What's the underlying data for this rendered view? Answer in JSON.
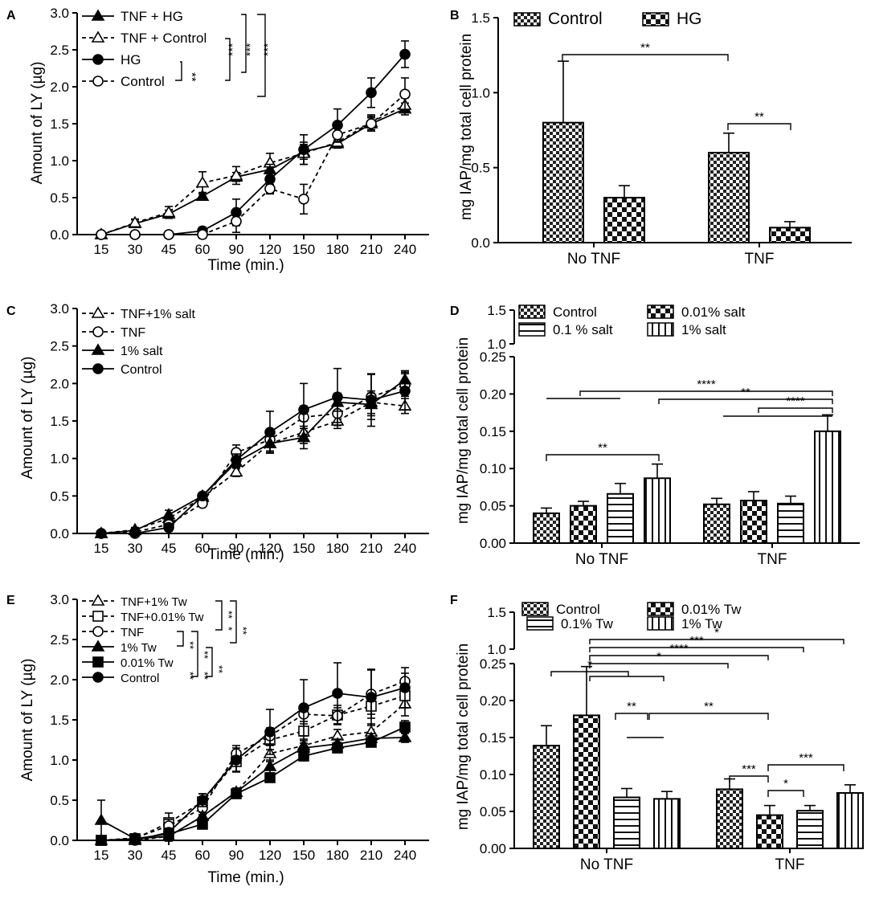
{
  "chart_data": [
    {
      "panel": "A",
      "type": "line",
      "x": [
        15,
        30,
        45,
        60,
        90,
        120,
        150,
        180,
        210,
        240
      ],
      "xlabel": "Time (min.)",
      "ylabel": "Amount of LY (µg)",
      "ylim": [
        0,
        3.0
      ],
      "yticks": [
        "0.0",
        "0.5",
        "1.0",
        "1.5",
        "2.0",
        "2.5",
        "3.0"
      ],
      "series": [
        {
          "name": "TNF + HG",
          "marker": "triangle-filled",
          "dash": false,
          "values": [
            0,
            0.15,
            0.28,
            0.52,
            0.78,
            0.88,
            1.12,
            1.23,
            1.5,
            1.7
          ],
          "err": [
            0.02,
            0.05,
            0.05,
            0.05,
            0.06,
            0.08,
            0.1,
            0.05,
            0.08,
            0.08
          ]
        },
        {
          "name": "TNF + Control",
          "marker": "triangle-open",
          "dash": true,
          "values": [
            0,
            0.16,
            0.3,
            0.7,
            0.8,
            0.97,
            1.1,
            1.25,
            1.52,
            1.75
          ],
          "err": [
            0.02,
            0.05,
            0.08,
            0.15,
            0.12,
            0.13,
            0.15,
            0.08,
            0.1,
            0.1
          ]
        },
        {
          "name": "HG",
          "marker": "circle-filled",
          "dash": false,
          "values": [
            0,
            0,
            0,
            0.05,
            0.3,
            0.75,
            1.15,
            1.48,
            1.92,
            2.44
          ],
          "err": [
            0.02,
            0.02,
            0.02,
            0.05,
            0.18,
            0.2,
            0.2,
            0.22,
            0.2,
            0.18
          ]
        },
        {
          "name": "Control",
          "marker": "circle-open",
          "dash": true,
          "values": [
            0,
            0,
            0,
            0,
            0.18,
            0.62,
            0.48,
            1.35,
            1.5,
            1.9
          ],
          "err": [
            0.02,
            0.02,
            0.02,
            0.05,
            0.15,
            0.06,
            0.2,
            0.1,
            0.1,
            0.22
          ]
        }
      ],
      "annotations": [
        "**",
        "***",
        "***",
        "***"
      ]
    },
    {
      "panel": "B",
      "type": "bar",
      "categories": [
        "No TNF",
        "TNF"
      ],
      "ylabel": "mg IAP/mg total cell protein",
      "ylim": [
        0,
        1.5
      ],
      "yticks": [
        "0.0",
        "0.5",
        "1.0",
        "1.5"
      ],
      "series": [
        {
          "name": "Control",
          "values": [
            0.8,
            0.6
          ],
          "err": [
            0.41,
            0.13
          ]
        },
        {
          "name": "HG",
          "values": [
            0.3,
            0.1
          ],
          "err": [
            0.08,
            0.04
          ]
        }
      ],
      "annotations": [
        "**",
        "**"
      ]
    },
    {
      "panel": "C",
      "type": "line",
      "x": [
        15,
        30,
        45,
        60,
        90,
        120,
        150,
        180,
        210,
        240
      ],
      "xlabel": "Time (min.)",
      "ylabel": "Amount of LY (µg)",
      "ylim": [
        0,
        3.0
      ],
      "yticks": [
        "0.0",
        "0.5",
        "1.0",
        "1.5",
        "2.0",
        "2.5",
        "3.0"
      ],
      "series": [
        {
          "name": "TNF+1% salt",
          "marker": "triangle-open",
          "dash": true,
          "values": [
            0,
            0.05,
            0.2,
            0.48,
            0.82,
            1.2,
            1.35,
            1.5,
            1.75,
            1.7
          ],
          "err": [
            0.02,
            0.03,
            0.05,
            0.04,
            0.06,
            0.1,
            0.15,
            0.1,
            0.15,
            0.1
          ]
        },
        {
          "name": "TNF",
          "marker": "circle-open",
          "dash": true,
          "values": [
            0,
            0.02,
            0.12,
            0.4,
            1.08,
            1.25,
            1.55,
            1.6,
            1.82,
            1.98
          ],
          "err": [
            0.02,
            0.03,
            0.05,
            0.04,
            0.1,
            0.1,
            0.15,
            0.12,
            0.3,
            0.15
          ]
        },
        {
          "name": "1% salt",
          "marker": "triangle-filled",
          "dash": false,
          "values": [
            0,
            0.04,
            0.25,
            0.5,
            0.95,
            1.2,
            1.28,
            1.75,
            1.72,
            2.05
          ],
          "err": [
            0.02,
            0.03,
            0.06,
            0.04,
            0.08,
            0.12,
            0.15,
            0.12,
            0.15,
            0.12
          ]
        },
        {
          "name": "Control",
          "marker": "circle-filled",
          "dash": false,
          "values": [
            0,
            0,
            0.08,
            0.5,
            0.98,
            1.35,
            1.65,
            1.82,
            1.78,
            1.9
          ],
          "err": [
            0.02,
            0.02,
            0.05,
            0.04,
            0.08,
            0.28,
            0.35,
            0.38,
            0.35,
            0.25
          ]
        }
      ]
    },
    {
      "panel": "D",
      "type": "bar",
      "categories": [
        "No TNF",
        "TNF"
      ],
      "ylabel": "mg IAP/mg total cell protein",
      "ylim_lower": [
        0,
        0.25
      ],
      "ylim_upper": [
        1.0,
        1.5
      ],
      "yticks": [
        "0.00",
        "0.05",
        "0.10",
        "0.15",
        "0.20",
        "0.25",
        "1.0",
        "1.5"
      ],
      "series": [
        {
          "name": "Control",
          "values": [
            0.04,
            0.052
          ],
          "err": [
            0.007,
            0.008
          ]
        },
        {
          "name": "0.01% salt",
          "values": [
            0.05,
            0.057
          ],
          "err": [
            0.006,
            0.012
          ]
        },
        {
          "name": "0.1 % salt",
          "values": [
            0.066,
            0.053
          ],
          "err": [
            0.014,
            0.01
          ]
        },
        {
          "name": "1% salt",
          "values": [
            0.087,
            0.15
          ],
          "err": [
            0.019,
            0.022
          ]
        }
      ],
      "annotations": [
        "****",
        "**",
        "****",
        "**"
      ]
    },
    {
      "panel": "E",
      "type": "line",
      "x": [
        15,
        30,
        45,
        60,
        90,
        120,
        150,
        180,
        210,
        240
      ],
      "xlabel": "Time (min.)",
      "ylabel": "Amount of LY (µg)",
      "ylim": [
        0,
        3.0
      ],
      "yticks": [
        "0.0",
        "0.5",
        "1.0",
        "1.5",
        "2.0",
        "2.5",
        "3.0"
      ],
      "series": [
        {
          "name": "TNF+1% Tw",
          "marker": "triangle-open",
          "dash": true,
          "values": [
            0,
            0,
            0.05,
            0.3,
            0.6,
            1.08,
            1.18,
            1.3,
            1.35,
            1.7
          ],
          "err": [
            0.02,
            0.03,
            0.06,
            0.06,
            0.05,
            0.1,
            0.08,
            0.08,
            0.1,
            0.15
          ]
        },
        {
          "name": "TNF+0.01% Tw",
          "marker": "square-open",
          "dash": true,
          "values": [
            0,
            0.02,
            0.22,
            0.48,
            0.98,
            1.25,
            1.36,
            1.56,
            1.67,
            1.8
          ],
          "err": [
            0.02,
            0.03,
            0.12,
            0.1,
            0.12,
            0.12,
            0.12,
            0.12,
            0.1,
            0.15
          ]
        },
        {
          "name": "TNF",
          "marker": "circle-open",
          "dash": true,
          "values": [
            0,
            0.03,
            0.18,
            0.4,
            1.08,
            1.3,
            1.57,
            1.55,
            1.82,
            1.98
          ],
          "err": [
            0.02,
            0.03,
            0.08,
            0.08,
            0.1,
            0.1,
            0.12,
            0.1,
            0.3,
            0.1
          ]
        },
        {
          "name": "1% Tw",
          "marker": "triangle-filled",
          "dash": false,
          "values": [
            0.25,
            0.02,
            0.05,
            0.3,
            0.6,
            0.92,
            1.15,
            1.2,
            1.27,
            1.28
          ],
          "err": [
            0.25,
            0.02,
            0.05,
            0.05,
            0.05,
            0.08,
            0.06,
            0.06,
            0.06,
            0.06
          ]
        },
        {
          "name": "0.01% Tw",
          "marker": "square-filled",
          "dash": false,
          "values": [
            0,
            0.02,
            0.08,
            0.2,
            0.58,
            0.78,
            1.05,
            1.15,
            1.22,
            1.41
          ],
          "err": [
            0.02,
            0.02,
            0.04,
            0.04,
            0.05,
            0.05,
            0.06,
            0.06,
            0.05,
            0.08
          ]
        },
        {
          "name": "Control",
          "marker": "circle-filled",
          "dash": false,
          "values": [
            0,
            0,
            0.1,
            0.5,
            1.0,
            1.35,
            1.65,
            1.83,
            1.78,
            1.9
          ],
          "err": [
            0.02,
            0.02,
            0.05,
            0.08,
            0.15,
            0.28,
            0.35,
            0.38,
            0.35,
            0.25
          ]
        }
      ],
      "annotations": [
        "**",
        "**",
        "*",
        "**",
        "**",
        "**",
        "**",
        "**"
      ]
    },
    {
      "panel": "F",
      "type": "bar",
      "categories": [
        "No TNF",
        "TNF"
      ],
      "ylabel": "mg IAP/mg total cell protein",
      "ylim_lower": [
        0,
        0.25
      ],
      "ylim_upper": [
        1.0,
        1.5
      ],
      "yticks": [
        "0.00",
        "0.05",
        "0.10",
        "0.15",
        "0.20",
        "0.25",
        "1.0",
        "1.5"
      ],
      "series": [
        {
          "name": "Control",
          "values": [
            0.139,
            0.08
          ],
          "err": [
            0.027,
            0.014
          ]
        },
        {
          "name": "0.01% Tw",
          "values": [
            0.18,
            0.045
          ],
          "err": [
            0.066,
            0.013
          ]
        },
        {
          "name": "0.1% Tw",
          "values": [
            0.069,
            0.051
          ],
          "err": [
            0.012,
            0.007
          ]
        },
        {
          "name": "1% Tw",
          "values": [
            0.067,
            0.075
          ],
          "err": [
            0.01,
            0.011
          ]
        }
      ],
      "annotations": [
        "*",
        "***",
        "****",
        "*",
        "*",
        "**",
        "**",
        "***",
        "*",
        "***"
      ]
    }
  ]
}
